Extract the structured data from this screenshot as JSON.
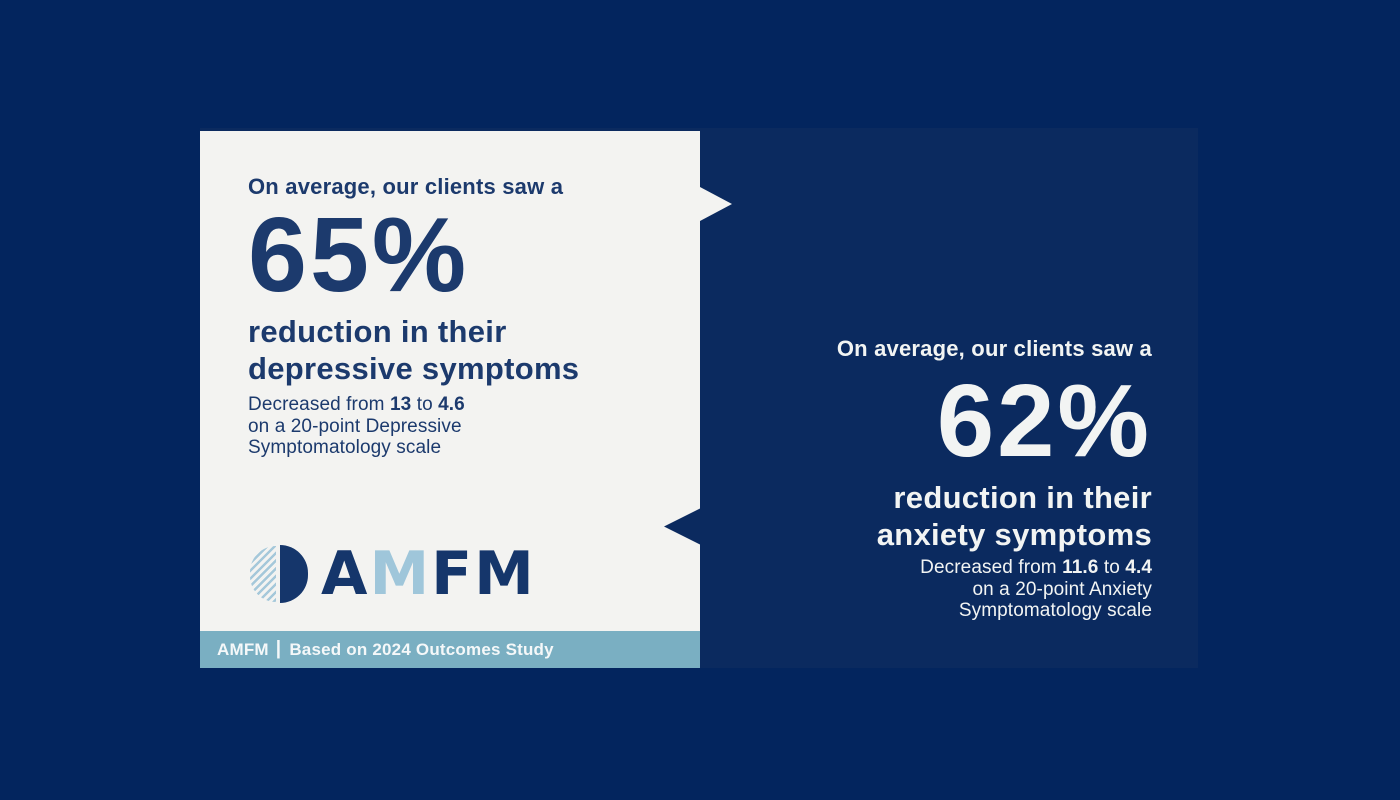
{
  "colors": {
    "background": "#03255E",
    "panel": "#0B2A5F",
    "card_bg": "#F3F3F1",
    "navy_text": "#1C3A6D",
    "logo_navy": "#15366B",
    "logo_light_blue": "#9FC6DA",
    "footer_bar": "#7AAFC2",
    "white_text": "#F2F4F3"
  },
  "left_card": {
    "intro": "On average, our clients saw a",
    "stat": "65%",
    "headline": {
      "line1": "reduction in their",
      "line2": "depressive symptoms"
    },
    "detail": {
      "lead": "Decreased from",
      "from_value": "13",
      "connector": "to",
      "to_value": "4.6",
      "line2": "on a 20-point Depressive",
      "line3": "Symptomatology scale"
    },
    "logo": {
      "l1": "A",
      "l2": "M",
      "l3": "F",
      "l4": "M"
    },
    "footer": {
      "brand": "AMFM",
      "divider": "|",
      "note": "Based on 2024 Outcomes Study"
    }
  },
  "right_block": {
    "intro": "On average, our clients saw a",
    "stat": "62%",
    "headline": {
      "line1": "reduction in their",
      "line2": "anxiety symptoms"
    },
    "detail": {
      "lead": "Decreased from",
      "from_value": "11.6",
      "connector": "to",
      "to_value": "4.4",
      "line2": "on a 20-point Anxiety",
      "line3": "Symptomatology scale"
    }
  }
}
